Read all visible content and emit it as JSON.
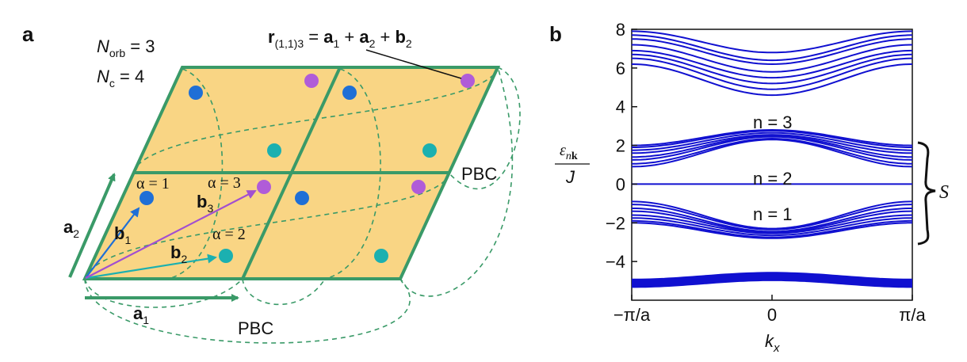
{
  "panel_a": {
    "label": "a",
    "norb": {
      "sym": "N",
      "sub": "orb",
      "rest": " = 3"
    },
    "nc": {
      "sym": "N",
      "sub": "c",
      "rest": " = 4"
    },
    "r_eq": {
      "r": "r",
      "r_sub": "(1,1)3",
      "eq": " = ",
      "a1": "a",
      "a1_sub": "1",
      "plus1": " + ",
      "a2": "a",
      "a2_sub": "2",
      "plus2": " + ",
      "b2": "b",
      "b2_sub": "2"
    },
    "pbc_right": "PBC",
    "pbc_bottom": "PBC",
    "alpha1": "α = 1",
    "alpha2": "α = 2",
    "alpha3": "α = 3",
    "a1": {
      "base": "a",
      "sub": "1"
    },
    "a2": {
      "base": "a",
      "sub": "2"
    },
    "b1": {
      "base": "b",
      "sub": "1"
    },
    "b2": {
      "base": "b",
      "sub": "2"
    },
    "b3": {
      "base": "b",
      "sub": "3"
    },
    "colors": {
      "cell_fill": "#f9d584",
      "cell_edge": "#3a9a68",
      "orb1": "#1f6fd6",
      "orb2": "#1bb0b0",
      "orb3": "#b05cd8",
      "b3_arrow": "#a24fd0"
    }
  },
  "panel_b": {
    "label": "b",
    "ylabel_num": "ε",
    "ylabel_num_sub": "n",
    "ylabel_num_bold": "k",
    "ylabel_den": "J",
    "xlabel_base": "k",
    "xlabel_sub": "x",
    "band_labels": [
      "n = 3",
      "n = 2",
      "n = 1"
    ],
    "set_label": "S",
    "line_color": "#1010d0"
  },
  "chart_data": {
    "type": "line",
    "xlabel": "k_x",
    "ylabel": "ε_nk / J",
    "xticks": [
      "−π/a",
      "0",
      "π/a"
    ],
    "yticks": [
      "8",
      "6",
      "4",
      "2",
      "0",
      "−2",
      "−4"
    ],
    "xlim": [
      -3.1416,
      3.1416
    ],
    "ylim": [
      -6,
      8
    ],
    "grid": false,
    "bands": [
      {
        "name": "upper",
        "count": 8,
        "edge_values": [
          7.9,
          7.7,
          7.5,
          7.2,
          6.9,
          6.7,
          6.5,
          6.2
        ],
        "center_values": [
          6.8,
          6.4,
          6.2,
          5.8,
          5.5,
          5.2,
          4.9,
          4.6
        ]
      },
      {
        "name": "n = 3",
        "count": 8,
        "edge_values": [
          2.0,
          1.9,
          1.75,
          1.6,
          1.4,
          1.25,
          1.05,
          0.9
        ],
        "center_values": [
          2.8,
          2.75,
          2.65,
          2.55,
          2.5,
          2.45,
          2.35,
          2.3
        ]
      },
      {
        "name": "n = 2",
        "count": 1,
        "edge_values": [
          0
        ],
        "center_values": [
          0
        ]
      },
      {
        "name": "n = 1",
        "count": 8,
        "edge_values": [
          -0.9,
          -1.05,
          -1.25,
          -1.4,
          -1.6,
          -1.75,
          -1.9,
          -2.0
        ],
        "center_values": [
          -2.3,
          -2.35,
          -2.45,
          -2.5,
          -2.55,
          -2.65,
          -2.75,
          -2.8
        ]
      },
      {
        "name": "lowest",
        "count": 8,
        "edge_values": [
          -4.95,
          -5.0,
          -5.05,
          -5.1,
          -5.15,
          -5.2,
          -5.25,
          -5.3
        ],
        "center_values": [
          -4.6,
          -4.65,
          -4.7,
          -4.75,
          -4.8,
          -4.85,
          -4.9,
          -4.95
        ]
      }
    ]
  }
}
